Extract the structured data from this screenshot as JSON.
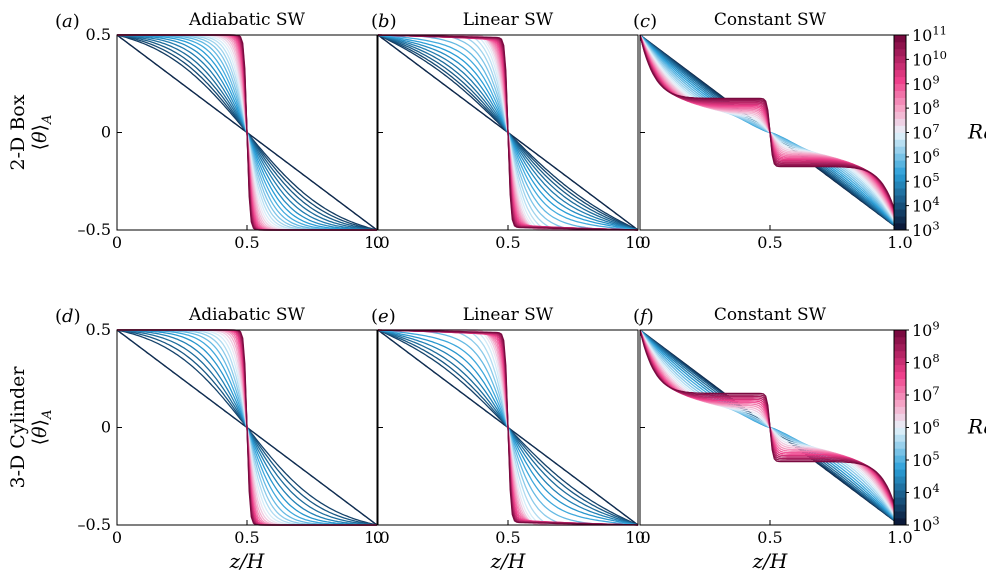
{
  "figure": {
    "row_labels": [
      {
        "name": "2-D Box",
        "ylabel": "⟨θ⟩_A"
      },
      {
        "name": "3-D Cylinder",
        "ylabel": "⟨θ⟩_A"
      }
    ],
    "xlabel": "z/H",
    "colorbar_label": "Ra",
    "colorbars": [
      {
        "ticks": [
          "10^3",
          "10^4",
          "10^5",
          "10^6",
          "10^7",
          "10^8",
          "10^9",
          "10^10",
          "10^11"
        ],
        "exp_min": 3,
        "exp_max": 11
      },
      {
        "ticks": [
          "10^3",
          "10^4",
          "10^5",
          "10^6",
          "10^7",
          "10^8",
          "10^9"
        ],
        "exp_min": 3,
        "exp_max": 9
      }
    ],
    "colors": {
      "low": "#0b1a3a",
      "mid_blue": "#2a9fd8",
      "light": "#e8f4fb",
      "pink": "#ee3f8a",
      "high": "#7a0a40"
    }
  },
  "chart_data": [
    {
      "type": "line",
      "panel": "a",
      "row": 0,
      "title": "Adiabatic SW",
      "bc": "adiabatic",
      "xlim": [
        0,
        1
      ],
      "ylim": [
        -0.5,
        0.5
      ],
      "xticks": [
        "0",
        "0.5",
        "1.0"
      ],
      "yticks": [
        "–0.5",
        "0",
        "0.5"
      ],
      "ra_exponents": [
        3,
        11
      ],
      "n_curves": 30
    },
    {
      "type": "line",
      "panel": "b",
      "row": 0,
      "title": "Linear SW",
      "bc": "linear",
      "xlim": [
        0,
        1
      ],
      "ylim": [
        -0.5,
        0.5
      ],
      "xticks": [
        "0",
        "0.5",
        "1.0"
      ],
      "yticks": [
        "–0.5",
        "0",
        "0.5"
      ],
      "ra_exponents": [
        3,
        11
      ],
      "n_curves": 30
    },
    {
      "type": "line",
      "panel": "c",
      "row": 0,
      "title": "Constant SW",
      "bc": "constant",
      "xlim": [
        0,
        1
      ],
      "ylim": [
        -0.5,
        0.5
      ],
      "xticks": [
        "0",
        "0.5",
        "1.0"
      ],
      "yticks": [
        "–0.5",
        "0",
        "0.5"
      ],
      "ra_exponents": [
        3,
        11
      ],
      "n_curves": 30
    },
    {
      "type": "line",
      "panel": "d",
      "row": 1,
      "title": "Adiabatic SW",
      "bc": "adiabatic",
      "xlim": [
        0,
        1
      ],
      "ylim": [
        -0.5,
        0.5
      ],
      "xticks": [
        "0",
        "0.5",
        "1.0"
      ],
      "yticks": [
        "–0.5",
        "0",
        "0.5"
      ],
      "ra_exponents": [
        3,
        9
      ],
      "n_curves": 24
    },
    {
      "type": "line",
      "panel": "e",
      "row": 1,
      "title": "Linear SW",
      "bc": "linear",
      "xlim": [
        0,
        1
      ],
      "ylim": [
        -0.5,
        0.5
      ],
      "xticks": [
        "0",
        "0.5",
        "1.0"
      ],
      "yticks": [
        "–0.5",
        "0",
        "0.5"
      ],
      "ra_exponents": [
        3,
        9
      ],
      "n_curves": 24
    },
    {
      "type": "line",
      "panel": "f",
      "row": 1,
      "title": "Constant SW",
      "bc": "constant",
      "xlim": [
        0,
        1
      ],
      "ylim": [
        -0.5,
        0.5
      ],
      "xticks": [
        "0",
        "0.5",
        "1.0"
      ],
      "yticks": [
        "–0.5",
        "0",
        "0.5"
      ],
      "ra_exponents": [
        3,
        9
      ],
      "n_curves": 24
    }
  ]
}
